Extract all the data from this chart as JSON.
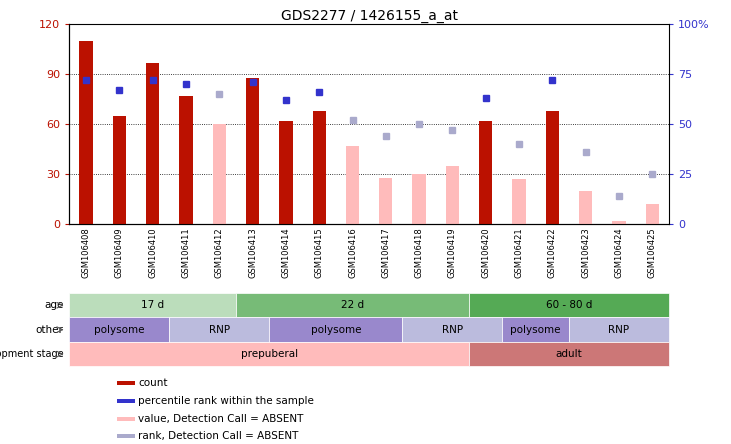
{
  "title": "GDS2277 / 1426155_a_at",
  "samples": [
    "GSM106408",
    "GSM106409",
    "GSM106410",
    "GSM106411",
    "GSM106412",
    "GSM106413",
    "GSM106414",
    "GSM106415",
    "GSM106416",
    "GSM106417",
    "GSM106418",
    "GSM106419",
    "GSM106420",
    "GSM106421",
    "GSM106422",
    "GSM106423",
    "GSM106424",
    "GSM106425"
  ],
  "count_values": [
    110,
    65,
    97,
    77,
    null,
    88,
    62,
    68,
    null,
    null,
    null,
    null,
    62,
    null,
    68,
    null,
    null,
    null
  ],
  "count_absent": [
    null,
    null,
    null,
    null,
    60,
    null,
    null,
    null,
    47,
    28,
    30,
    35,
    null,
    27,
    null,
    20,
    2,
    12
  ],
  "percentile_rank": [
    72,
    67,
    72,
    70,
    null,
    71,
    62,
    66,
    null,
    null,
    null,
    null,
    63,
    null,
    72,
    null,
    null,
    null
  ],
  "rank_absent": [
    null,
    null,
    null,
    null,
    65,
    null,
    null,
    null,
    52,
    44,
    50,
    47,
    null,
    40,
    null,
    36,
    14,
    25
  ],
  "ylim_left": [
    0,
    120
  ],
  "ylim_right": [
    0,
    100
  ],
  "yticks_left": [
    0,
    30,
    60,
    90,
    120
  ],
  "yticks_right": [
    0,
    25,
    50,
    75,
    100
  ],
  "bar_color_red": "#bb1100",
  "bar_color_pink": "#ffbbbb",
  "dot_color_blue": "#3333cc",
  "dot_color_lightblue": "#aaaacc",
  "age_groups": [
    {
      "label": "17 d",
      "start": 0,
      "end": 5,
      "color": "#bbddbb"
    },
    {
      "label": "22 d",
      "start": 5,
      "end": 12,
      "color": "#77bb77"
    },
    {
      "label": "60 - 80 d",
      "start": 12,
      "end": 18,
      "color": "#55aa55"
    }
  ],
  "other_groups": [
    {
      "label": "polysome",
      "start": 0,
      "end": 3,
      "color": "#9988cc"
    },
    {
      "label": "RNP",
      "start": 3,
      "end": 6,
      "color": "#bbbbdd"
    },
    {
      "label": "polysome",
      "start": 6,
      "end": 10,
      "color": "#9988cc"
    },
    {
      "label": "RNP",
      "start": 10,
      "end": 13,
      "color": "#bbbbdd"
    },
    {
      "label": "polysome",
      "start": 13,
      "end": 15,
      "color": "#9988cc"
    },
    {
      "label": "RNP",
      "start": 15,
      "end": 18,
      "color": "#bbbbdd"
    }
  ],
  "dev_groups": [
    {
      "label": "prepuberal",
      "start": 0,
      "end": 12,
      "color": "#ffbbbb"
    },
    {
      "label": "adult",
      "start": 12,
      "end": 18,
      "color": "#cc7777"
    }
  ],
  "legend_items": [
    {
      "label": "count",
      "color": "#bb1100"
    },
    {
      "label": "percentile rank within the sample",
      "color": "#3333cc"
    },
    {
      "label": "value, Detection Call = ABSENT",
      "color": "#ffbbbb"
    },
    {
      "label": "rank, Detection Call = ABSENT",
      "color": "#aaaacc"
    }
  ],
  "background_color": "#ffffff",
  "tick_area_color": "#dddddd"
}
